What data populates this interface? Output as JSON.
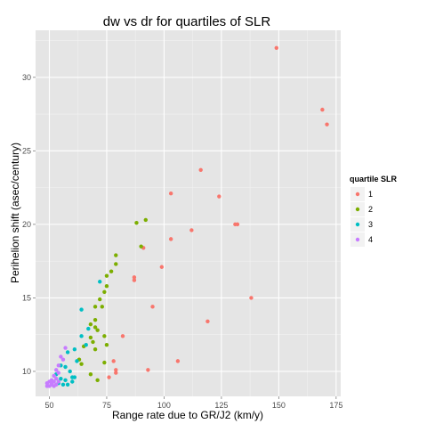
{
  "chart_data": {
    "type": "scatter",
    "title": "dw vs dr for quartiles of SLR",
    "xlabel": "Range rate due to GR/J2 (km/y)",
    "ylabel": "Perihelion shift (asec/century)",
    "xlim": [
      44,
      177
    ],
    "ylim": [
      8.3,
      33.2
    ],
    "x_ticks": [
      50,
      75,
      100,
      125,
      150,
      175
    ],
    "y_ticks": [
      10,
      15,
      20,
      25,
      30
    ],
    "grid": true,
    "legend": {
      "title": "quartile SLR",
      "placement": "right"
    },
    "series": [
      {
        "name": "1",
        "color": "#F8766D",
        "points": [
          [
            149,
            32.0
          ],
          [
            169,
            27.8
          ],
          [
            171,
            26.8
          ],
          [
            116,
            23.7
          ],
          [
            103,
            22.1
          ],
          [
            124,
            21.9
          ],
          [
            132,
            20.0
          ],
          [
            131,
            20.0
          ],
          [
            112,
            19.6
          ],
          [
            103,
            19.0
          ],
          [
            91,
            18.4
          ],
          [
            99,
            17.1
          ],
          [
            87,
            16.4
          ],
          [
            87,
            16.2
          ],
          [
            138,
            15.0
          ],
          [
            95,
            14.4
          ],
          [
            119,
            13.4
          ],
          [
            82,
            12.4
          ],
          [
            78,
            10.7
          ],
          [
            106,
            10.7
          ],
          [
            79,
            10.1
          ],
          [
            93,
            10.1
          ],
          [
            79,
            9.9
          ],
          [
            76,
            9.6
          ]
        ]
      },
      {
        "name": "2",
        "color": "#7CAE00",
        "points": [
          [
            92,
            20.3
          ],
          [
            88,
            20.1
          ],
          [
            90,
            18.5
          ],
          [
            79,
            17.9
          ],
          [
            79,
            17.3
          ],
          [
            77,
            16.8
          ],
          [
            75,
            16.5
          ],
          [
            75,
            15.8
          ],
          [
            74,
            15.4
          ],
          [
            72,
            14.9
          ],
          [
            70,
            14.4
          ],
          [
            73,
            14.4
          ],
          [
            70,
            13.5
          ],
          [
            68,
            13.2
          ],
          [
            70,
            13.0
          ],
          [
            71,
            12.8
          ],
          [
            68,
            12.3
          ],
          [
            74,
            12.4
          ],
          [
            69,
            12.0
          ],
          [
            75,
            11.8
          ],
          [
            65,
            11.7
          ],
          [
            70,
            11.5
          ],
          [
            63,
            10.8
          ],
          [
            64,
            10.5
          ],
          [
            74,
            10.6
          ],
          [
            68,
            9.8
          ],
          [
            71,
            9.4
          ]
        ]
      },
      {
        "name": "3",
        "color": "#00BFC4",
        "points": [
          [
            72,
            16.1
          ],
          [
            64,
            14.2
          ],
          [
            67,
            12.9
          ],
          [
            64,
            12.4
          ],
          [
            61,
            11.5
          ],
          [
            66,
            11.8
          ],
          [
            58,
            11.3
          ],
          [
            62,
            10.7
          ],
          [
            55,
            10.4
          ],
          [
            57,
            10.3
          ],
          [
            59,
            10.0
          ],
          [
            53,
            9.8
          ],
          [
            60,
            9.6
          ],
          [
            55,
            9.5
          ],
          [
            61,
            9.6
          ],
          [
            57,
            9.4
          ],
          [
            54,
            9.2
          ],
          [
            60,
            9.3
          ],
          [
            58,
            9.1
          ],
          [
            56,
            9.1
          ]
        ]
      },
      {
        "name": "4",
        "color": "#C77CFF",
        "points": [
          [
            57,
            11.6
          ],
          [
            55,
            11.0
          ],
          [
            56,
            10.8
          ],
          [
            54,
            10.4
          ],
          [
            53,
            10.1
          ],
          [
            54,
            9.9
          ],
          [
            52,
            9.7
          ],
          [
            53,
            9.5
          ],
          [
            51,
            9.4
          ],
          [
            50,
            9.3
          ],
          [
            52,
            9.3
          ],
          [
            49,
            9.2
          ],
          [
            51,
            9.2
          ],
          [
            53,
            9.1
          ],
          [
            49,
            9.0
          ],
          [
            50,
            9.0
          ],
          [
            52,
            9.0
          ],
          [
            51,
            9.1
          ],
          [
            54,
            9.3
          ]
        ]
      }
    ]
  }
}
